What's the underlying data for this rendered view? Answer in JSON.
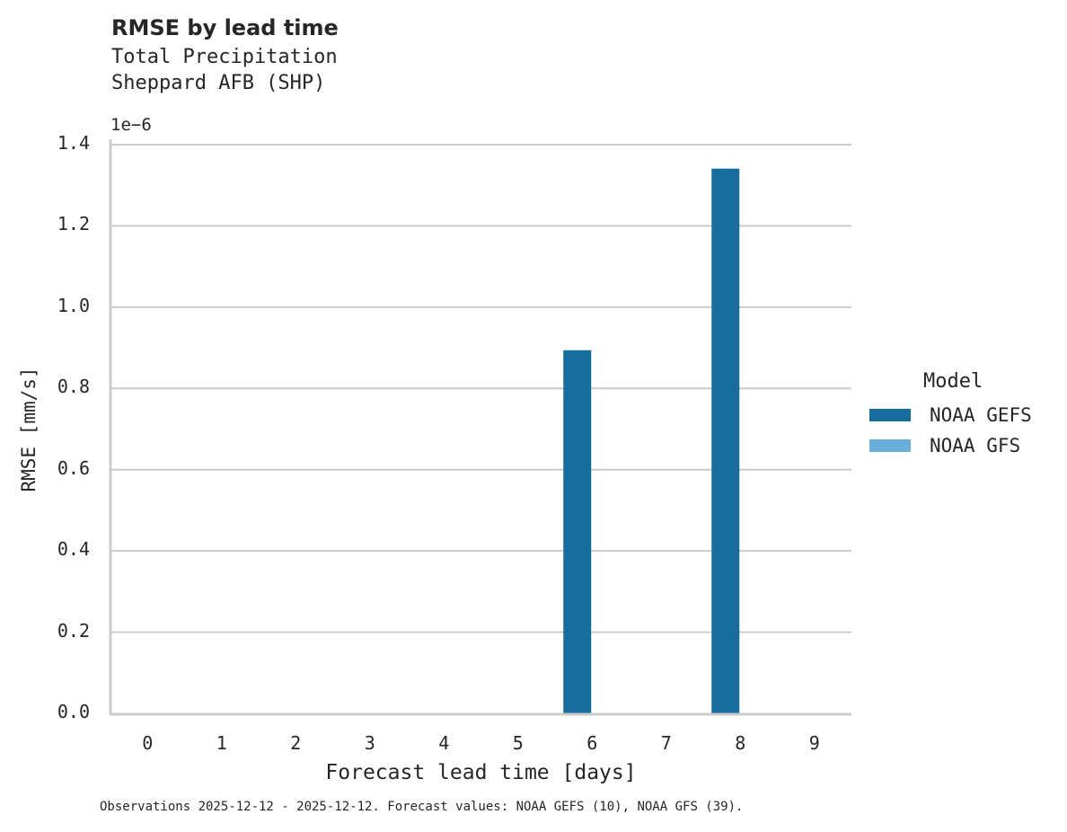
{
  "title": "RMSE by lead time",
  "subtitle_lines": [
    "Total Precipitation",
    "Sheppard AFB (SHP)"
  ],
  "y_offset_label": "1e−6",
  "footnote": "Observations 2025-12-12 - 2025-12-12. Forecast values: NOAA GEFS (10), NOAA GFS (39).",
  "legend": {
    "title": "Model",
    "items": [
      {
        "label": "NOAA GEFS",
        "color": "#176d9c"
      },
      {
        "label": "NOAA GFS",
        "color": "#6aafd9"
      }
    ]
  },
  "colors": {
    "grid": "#cccccc",
    "spine": "#cccccc",
    "text": "#262626"
  },
  "chart_data": {
    "type": "bar",
    "title": "RMSE by lead time",
    "subtitle": "Total Precipitation — Sheppard AFB (SHP)",
    "xlabel": "Forecast lead time [days]",
    "ylabel": "RMSE [mm/s]",
    "y_scale_factor": "1e-6",
    "categories": [
      "0",
      "1",
      "2",
      "3",
      "4",
      "5",
      "6",
      "7",
      "8",
      "9"
    ],
    "series": [
      {
        "name": "NOAA GEFS",
        "color": "#176d9c",
        "values": [
          0,
          0,
          0,
          0,
          0,
          0,
          0.894,
          0,
          1.341,
          0
        ]
      },
      {
        "name": "NOAA GFS",
        "color": "#6aafd9",
        "values": [
          0,
          0,
          0,
          0,
          0,
          0,
          0,
          0,
          0,
          0
        ]
      }
    ],
    "yticks": [
      "0.0",
      "0.2",
      "0.4",
      "0.6",
      "0.8",
      "1.0",
      "1.2",
      "1.4"
    ],
    "ylim": [
      0,
      1.4
    ],
    "grid": "horizontal",
    "legend_position": "right"
  }
}
